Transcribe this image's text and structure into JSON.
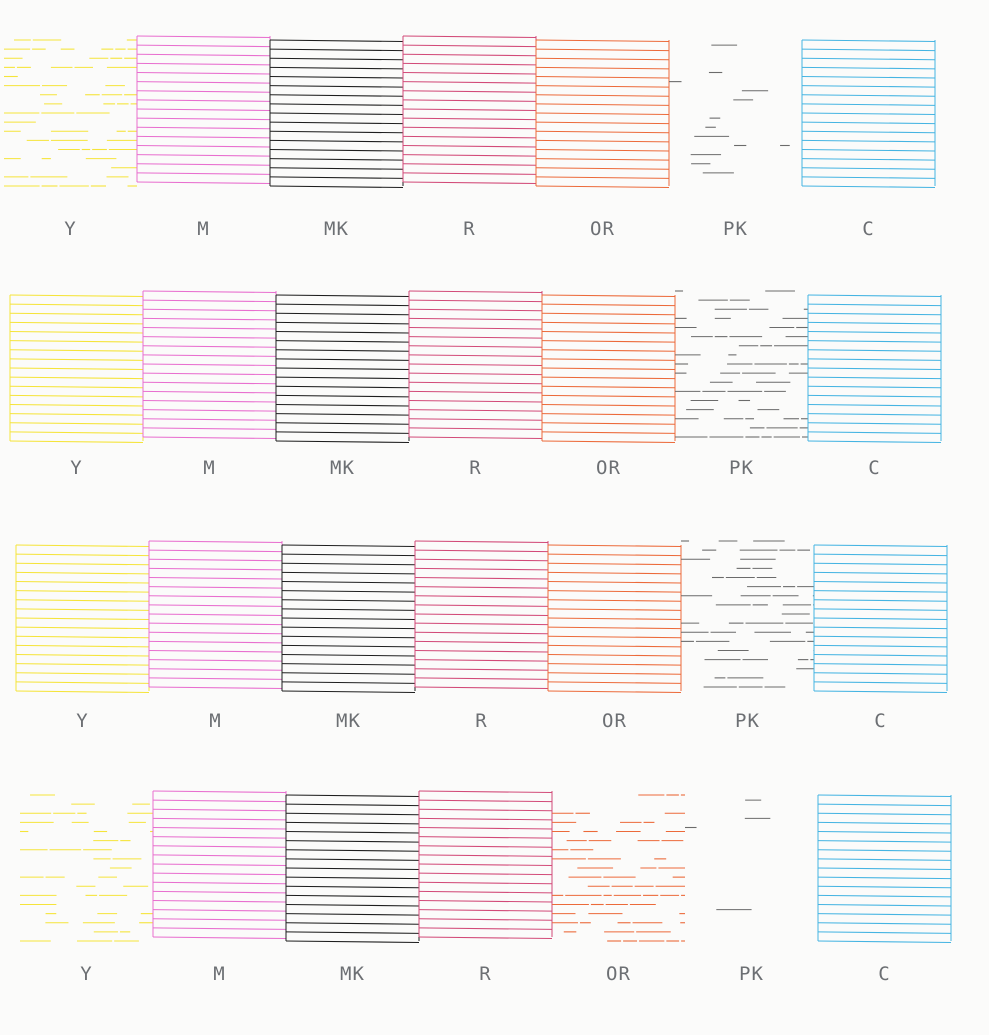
{
  "colors": {
    "Y": "#f5e43a",
    "M": "#e86fcf",
    "MK": "#1e1e1e",
    "R": "#d24a78",
    "OR": "#ec6a3a",
    "PK": "#6b6b6b",
    "C": "#45b4e2",
    "label": "#6c6f73",
    "paper": "#fbfbfa"
  },
  "channels": [
    "Y",
    "M",
    "MK",
    "R",
    "OR",
    "PK",
    "C"
  ],
  "rows": [
    {
      "labels": [
        "Y",
        "M",
        "MK",
        "R",
        "OR",
        "PK",
        "C"
      ],
      "patterns": {
        "Y": "broken",
        "M": "solid",
        "MK": "solid",
        "R": "solid",
        "OR": "solid",
        "PK": "faint",
        "C": "solid"
      }
    },
    {
      "labels": [
        "Y",
        "M",
        "MK",
        "R",
        "OR",
        "PK",
        "C"
      ],
      "patterns": {
        "Y": "solid",
        "M": "solid",
        "MK": "solid",
        "R": "solid",
        "OR": "solid",
        "PK": "broken",
        "C": "solid"
      }
    },
    {
      "labels": [
        "Y",
        "M",
        "MK",
        "R",
        "OR",
        "PK",
        "C"
      ],
      "patterns": {
        "Y": "solid",
        "M": "solid",
        "MK": "solid",
        "R": "solid",
        "OR": "solid",
        "PK": "broken",
        "C": "solid"
      }
    },
    {
      "labels": [
        "Y",
        "M",
        "MK",
        "R",
        "OR",
        "PK",
        "C"
      ],
      "patterns": {
        "Y": "broken",
        "M": "solid",
        "MK": "solid",
        "R": "solid",
        "OR": "broken",
        "PK": "faint",
        "C": "solid"
      }
    }
  ]
}
